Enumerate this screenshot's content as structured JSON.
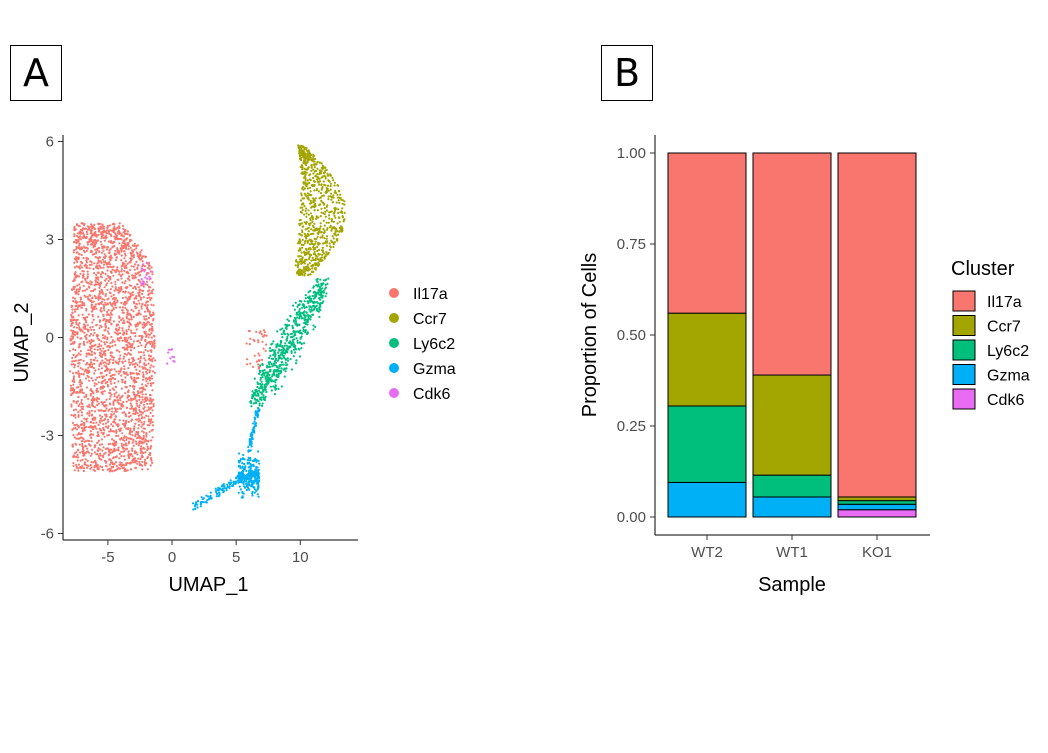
{
  "panels": {
    "a_label": "A",
    "b_label": "B"
  },
  "colors": {
    "Il17a": "#F8766D",
    "Ccr7": "#A3A500",
    "Ly6c2": "#00BF7D",
    "Gzma": "#00B0F6",
    "Cdk6": "#E76BF3"
  },
  "chart_data": [
    {
      "type": "scatter",
      "xlabel": "UMAP_1",
      "ylabel": "UMAP_2",
      "xlim": [
        -8.5,
        14.5
      ],
      "ylim": [
        -6.2,
        6.2
      ],
      "x_ticks": [
        -5,
        0,
        5,
        10
      ],
      "y_ticks": [
        -6,
        -3,
        0,
        3,
        6
      ],
      "x_tick_labels": [
        "-5",
        "0",
        "5",
        "10"
      ],
      "y_tick_labels": [
        "-6",
        "-3",
        "0",
        "3",
        "6"
      ],
      "legend_position": "right",
      "series": [
        {
          "name": "Il17a",
          "color": "#F8766D",
          "approx_region": {
            "x_range": [
              -8.2,
              -1.0
            ],
            "y_range": [
              -4.2,
              3.6
            ]
          }
        },
        {
          "name": "Ccr7",
          "color": "#A3A500",
          "approx_region": {
            "x_range": [
              8.8,
              13.5
            ],
            "y_range": [
              1.8,
              5.9
            ]
          }
        },
        {
          "name": "Ly6c2",
          "color": "#00BF7D",
          "approx_region": {
            "x_range": [
              6.0,
              12.5
            ],
            "y_range": [
              -2.2,
              1.8
            ]
          }
        },
        {
          "name": "Gzma",
          "color": "#00B0F6",
          "approx_region": {
            "x_range": [
              1.5,
              7.0
            ],
            "y_range": [
              -5.5,
              -2.6
            ]
          }
        },
        {
          "name": "Cdk6",
          "color": "#E76BF3",
          "approx_region": {
            "x_range": [
              -2.5,
              0.2
            ],
            "y_range": [
              -0.8,
              2.5
            ]
          }
        }
      ]
    },
    {
      "type": "bar",
      "stacked": true,
      "categories": [
        "WT2",
        "WT1",
        "KO1"
      ],
      "xlabel": "Sample",
      "ylabel": "Proportion of Cells",
      "ylim": [
        0,
        1
      ],
      "y_ticks": [
        0,
        0.25,
        0.5,
        0.75,
        1
      ],
      "y_tick_labels": [
        "0.00",
        "0.25",
        "0.50",
        "0.75",
        "1.00"
      ],
      "legend_title": "Cluster",
      "legend_position": "right",
      "series": [
        {
          "name": "Il17a",
          "values": [
            0.44,
            0.61,
            0.945
          ]
        },
        {
          "name": "Ccr7",
          "values": [
            0.255,
            0.275,
            0.01
          ]
        },
        {
          "name": "Ly6c2",
          "values": [
            0.21,
            0.06,
            0.01
          ]
        },
        {
          "name": "Gzma",
          "values": [
            0.095,
            0.055,
            0.015
          ]
        },
        {
          "name": "Cdk6",
          "values": [
            0,
            0,
            0.02
          ]
        }
      ]
    }
  ]
}
